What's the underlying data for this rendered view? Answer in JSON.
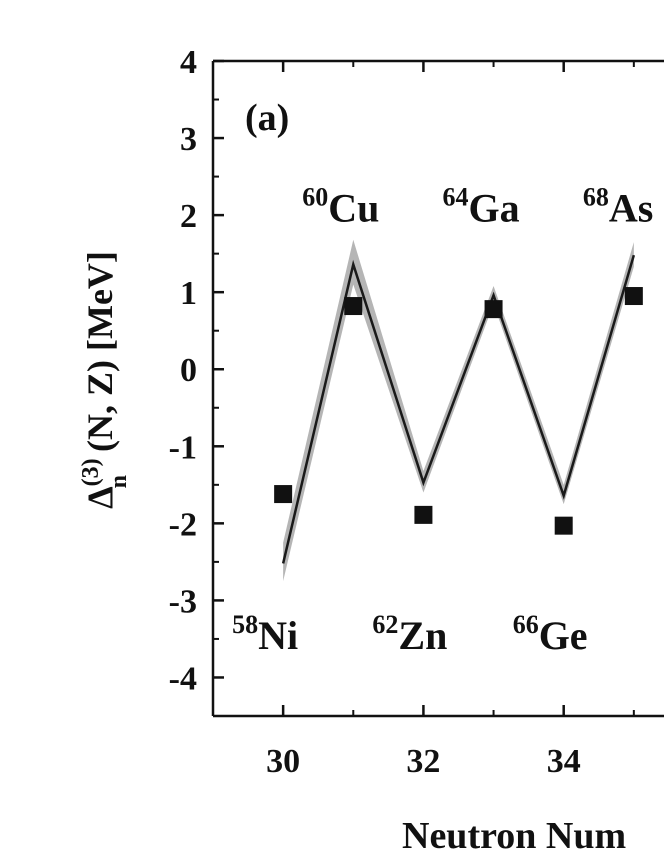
{
  "chart_data": {
    "type": "line",
    "panel_label": "(a)",
    "x_label": "Neutron Num",
    "y_label": {
      "symbol": "Δ",
      "sup": "(3)",
      "sub": "n",
      "rest": " (N, Z) [MeV]"
    },
    "x": [
      30,
      31,
      32,
      33,
      34,
      35
    ],
    "line": {
      "values": [
        -2.52,
        1.36,
        -1.47,
        0.96,
        -1.64,
        1.48
      ],
      "color": "#1a1a1a"
    },
    "band": {
      "lower": [
        -2.75,
        1.1,
        -1.6,
        0.85,
        -1.75,
        1.33
      ],
      "upper": [
        -2.25,
        1.68,
        -1.32,
        1.08,
        -1.5,
        1.65
      ],
      "color": "#b5b5b5"
    },
    "points": {
      "values": [
        -1.62,
        0.82,
        -1.89,
        0.78,
        -2.03,
        0.95
      ],
      "color": "#111111"
    },
    "annotations": [
      {
        "x": 30,
        "y": -3.45,
        "mass": "58",
        "element": "Ni"
      },
      {
        "x": 31,
        "y": 2.1,
        "mass": "60",
        "element": "Cu"
      },
      {
        "x": 32,
        "y": -3.45,
        "mass": "62",
        "element": "Zn"
      },
      {
        "x": 33,
        "y": 2.1,
        "mass": "64",
        "element": "Ga"
      },
      {
        "x": 34,
        "y": -3.45,
        "mass": "66",
        "element": "Ge"
      },
      {
        "x": 35,
        "y": 2.1,
        "mass": "68",
        "element": "As"
      }
    ],
    "xlim": [
      29,
      35.43
    ],
    "ylim": [
      -4.5,
      4
    ],
    "xticks": [
      30,
      32,
      34
    ],
    "xminorticks": [
      31,
      33,
      35
    ],
    "yticks": [
      -4,
      -3,
      -2,
      -1,
      0,
      1,
      2,
      3,
      4
    ],
    "yminorticks": [
      -4.5,
      -3.5,
      -2.5,
      -1.5,
      -0.5,
      0.5,
      1.5,
      2.5,
      3.5
    ]
  }
}
